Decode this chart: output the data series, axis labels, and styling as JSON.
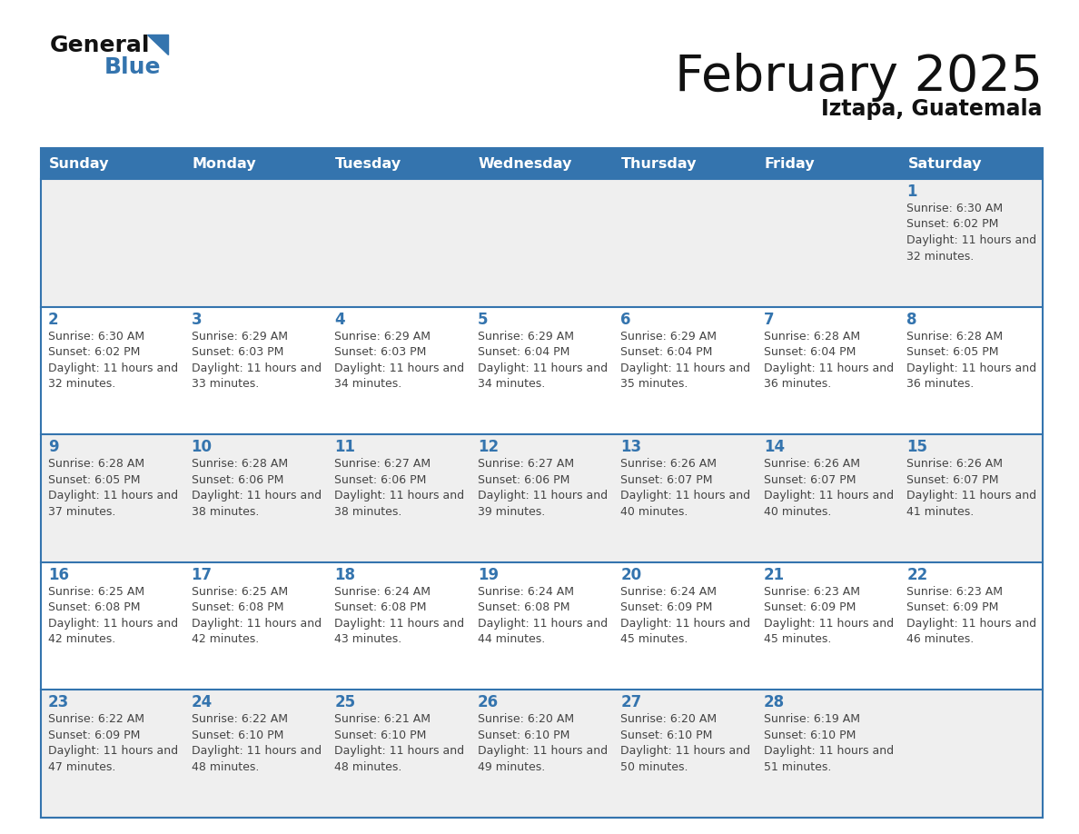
{
  "title": "February 2025",
  "subtitle": "Iztapa, Guatemala",
  "days_of_week": [
    "Sunday",
    "Monday",
    "Tuesday",
    "Wednesday",
    "Thursday",
    "Friday",
    "Saturday"
  ],
  "header_bg": "#3474ae",
  "header_text": "#ffffff",
  "row_bg_odd": "#efefef",
  "row_bg_even": "#ffffff",
  "cell_border": "#3474ae",
  "day_num_color": "#3474ae",
  "info_color": "#444444",
  "title_color": "#111111",
  "calendar": [
    [
      null,
      null,
      null,
      null,
      null,
      null,
      1
    ],
    [
      2,
      3,
      4,
      5,
      6,
      7,
      8
    ],
    [
      9,
      10,
      11,
      12,
      13,
      14,
      15
    ],
    [
      16,
      17,
      18,
      19,
      20,
      21,
      22
    ],
    [
      23,
      24,
      25,
      26,
      27,
      28,
      null
    ]
  ],
  "sunrise": {
    "1": "6:30 AM",
    "2": "6:30 AM",
    "3": "6:29 AM",
    "4": "6:29 AM",
    "5": "6:29 AM",
    "6": "6:29 AM",
    "7": "6:28 AM",
    "8": "6:28 AM",
    "9": "6:28 AM",
    "10": "6:28 AM",
    "11": "6:27 AM",
    "12": "6:27 AM",
    "13": "6:26 AM",
    "14": "6:26 AM",
    "15": "6:26 AM",
    "16": "6:25 AM",
    "17": "6:25 AM",
    "18": "6:24 AM",
    "19": "6:24 AM",
    "20": "6:24 AM",
    "21": "6:23 AM",
    "22": "6:23 AM",
    "23": "6:22 AM",
    "24": "6:22 AM",
    "25": "6:21 AM",
    "26": "6:20 AM",
    "27": "6:20 AM",
    "28": "6:19 AM"
  },
  "sunset": {
    "1": "6:02 PM",
    "2": "6:02 PM",
    "3": "6:03 PM",
    "4": "6:03 PM",
    "5": "6:04 PM",
    "6": "6:04 PM",
    "7": "6:04 PM",
    "8": "6:05 PM",
    "9": "6:05 PM",
    "10": "6:06 PM",
    "11": "6:06 PM",
    "12": "6:06 PM",
    "13": "6:07 PM",
    "14": "6:07 PM",
    "15": "6:07 PM",
    "16": "6:08 PM",
    "17": "6:08 PM",
    "18": "6:08 PM",
    "19": "6:08 PM",
    "20": "6:09 PM",
    "21": "6:09 PM",
    "22": "6:09 PM",
    "23": "6:09 PM",
    "24": "6:10 PM",
    "25": "6:10 PM",
    "26": "6:10 PM",
    "27": "6:10 PM",
    "28": "6:10 PM"
  },
  "daylight_hours": {
    "1": "11 hours and 32 minutes.",
    "2": "11 hours and 32 minutes.",
    "3": "11 hours and 33 minutes.",
    "4": "11 hours and 34 minutes.",
    "5": "11 hours and 34 minutes.",
    "6": "11 hours and 35 minutes.",
    "7": "11 hours and 36 minutes.",
    "8": "11 hours and 36 minutes.",
    "9": "11 hours and 37 minutes.",
    "10": "11 hours and 38 minutes.",
    "11": "11 hours and 38 minutes.",
    "12": "11 hours and 39 minutes.",
    "13": "11 hours and 40 minutes.",
    "14": "11 hours and 40 minutes.",
    "15": "11 hours and 41 minutes.",
    "16": "11 hours and 42 minutes.",
    "17": "11 hours and 42 minutes.",
    "18": "11 hours and 43 minutes.",
    "19": "11 hours and 44 minutes.",
    "20": "11 hours and 45 minutes.",
    "21": "11 hours and 45 minutes.",
    "22": "11 hours and 46 minutes.",
    "23": "11 hours and 47 minutes.",
    "24": "11 hours and 48 minutes.",
    "25": "11 hours and 48 minutes.",
    "26": "11 hours and 49 minutes.",
    "27": "11 hours and 50 minutes.",
    "28": "11 hours and 51 minutes."
  }
}
